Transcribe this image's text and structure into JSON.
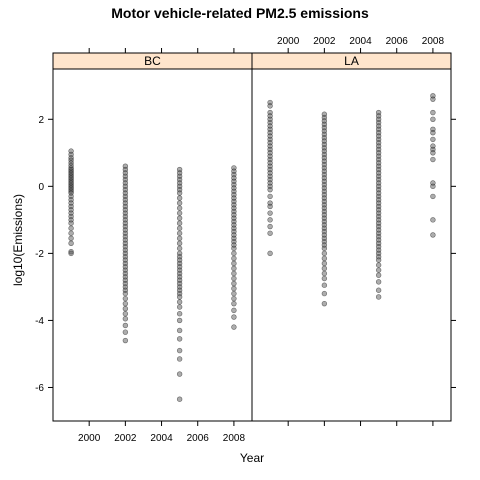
{
  "chart_data": {
    "type": "scatter",
    "title": "Motor vehicle-related PM2.5 emissions",
    "xlabel": "Year",
    "ylabel": "log10(Emissions)",
    "xlim": [
      1998,
      2009
    ],
    "ylim": [
      -7,
      3.5
    ],
    "x_ticks": [
      2000,
      2002,
      2004,
      2006,
      2008
    ],
    "y_ticks": [
      -6,
      -4,
      -2,
      0,
      2
    ],
    "point_color": "#4a4a4a",
    "strip_color": "#ffe5cc",
    "panels": [
      {
        "name": "BC",
        "series": [
          {
            "x": 1999,
            "values": [
              1.05,
              0.95,
              0.85,
              0.78,
              0.7,
              0.62,
              0.55,
              0.5,
              0.45,
              0.4,
              0.35,
              0.3,
              0.25,
              0.2,
              0.15,
              0.1,
              0.05,
              0.0,
              -0.05,
              -0.1,
              -0.15,
              -0.2,
              -0.3,
              -0.4,
              -0.5,
              -0.6,
              -0.7,
              -0.8,
              -0.9,
              -1.0,
              -1.1,
              -1.25,
              -1.4,
              -1.55,
              -1.7,
              -1.95,
              -2.0
            ]
          },
          {
            "x": 2002,
            "values": [
              0.6,
              0.5,
              0.4,
              0.3,
              0.2,
              0.1,
              0.0,
              -0.1,
              -0.2,
              -0.3,
              -0.4,
              -0.5,
              -0.6,
              -0.7,
              -0.8,
              -0.9,
              -1.0,
              -1.1,
              -1.2,
              -1.3,
              -1.4,
              -1.5,
              -1.6,
              -1.7,
              -1.8,
              -1.9,
              -2.0,
              -2.1,
              -2.2,
              -2.3,
              -2.4,
              -2.5,
              -2.6,
              -2.7,
              -2.8,
              -2.9,
              -3.0,
              -3.1,
              -3.2,
              -3.35,
              -3.5,
              -3.65,
              -3.8,
              -3.95,
              -4.15,
              -4.35,
              -4.6
            ]
          },
          {
            "x": 2005,
            "values": [
              0.5,
              0.4,
              0.3,
              0.2,
              0.1,
              0.0,
              -0.1,
              -0.2,
              -0.35,
              -0.5,
              -0.65,
              -0.8,
              -0.95,
              -1.1,
              -1.25,
              -1.4,
              -1.55,
              -1.7,
              -1.85,
              -2.0,
              -2.1,
              -2.2,
              -2.3,
              -2.4,
              -2.5,
              -2.6,
              -2.7,
              -2.8,
              -2.9,
              -3.0,
              -3.1,
              -3.2,
              -3.3,
              -3.45,
              -3.6,
              -3.8,
              -4.0,
              -4.3,
              -4.55,
              -4.9,
              -5.15,
              -5.6,
              -6.35
            ]
          },
          {
            "x": 2008,
            "values": [
              0.55,
              0.45,
              0.35,
              0.25,
              0.15,
              0.05,
              -0.05,
              -0.15,
              -0.25,
              -0.35,
              -0.45,
              -0.55,
              -0.65,
              -0.75,
              -0.85,
              -0.95,
              -1.05,
              -1.15,
              -1.25,
              -1.35,
              -1.45,
              -1.55,
              -1.65,
              -1.75,
              -1.85,
              -2.0,
              -2.15,
              -2.3,
              -2.45,
              -2.6,
              -2.75,
              -2.9,
              -3.05,
              -3.2,
              -3.35,
              -3.5,
              -3.7,
              -3.9,
              -4.2
            ]
          }
        ]
      },
      {
        "name": "LA",
        "series": [
          {
            "x": 1999,
            "values": [
              2.5,
              2.4,
              2.2,
              2.1,
              2.0,
              1.9,
              1.8,
              1.7,
              1.6,
              1.5,
              1.4,
              1.3,
              1.2,
              1.1,
              1.0,
              0.9,
              0.8,
              0.7,
              0.6,
              0.5,
              0.4,
              0.3,
              0.2,
              0.1,
              0.0,
              -0.1,
              -0.3,
              -0.5,
              -0.6,
              -0.8,
              -1.0,
              -1.2,
              -1.4,
              -2.0
            ]
          },
          {
            "x": 2002,
            "values": [
              2.15,
              2.05,
              1.95,
              1.85,
              1.75,
              1.65,
              1.55,
              1.45,
              1.35,
              1.25,
              1.15,
              1.05,
              0.95,
              0.85,
              0.75,
              0.65,
              0.55,
              0.45,
              0.35,
              0.25,
              0.15,
              0.05,
              -0.05,
              -0.15,
              -0.25,
              -0.35,
              -0.45,
              -0.55,
              -0.65,
              -0.75,
              -0.85,
              -0.95,
              -1.05,
              -1.15,
              -1.25,
              -1.35,
              -1.45,
              -1.55,
              -1.65,
              -1.75,
              -1.85,
              -2.0,
              -2.15,
              -2.3,
              -2.45,
              -2.6,
              -2.75,
              -2.95,
              -3.2,
              -3.5
            ]
          },
          {
            "x": 2005,
            "values": [
              2.2,
              2.1,
              2.0,
              1.9,
              1.8,
              1.7,
              1.6,
              1.5,
              1.4,
              1.3,
              1.2,
              1.1,
              1.0,
              0.9,
              0.8,
              0.7,
              0.6,
              0.5,
              0.4,
              0.3,
              0.2,
              0.1,
              0.0,
              -0.1,
              -0.2,
              -0.3,
              -0.4,
              -0.5,
              -0.6,
              -0.7,
              -0.8,
              -0.9,
              -1.0,
              -1.1,
              -1.2,
              -1.3,
              -1.4,
              -1.5,
              -1.6,
              -1.7,
              -1.8,
              -1.9,
              -2.0,
              -2.1,
              -2.2,
              -2.35,
              -2.5,
              -2.65,
              -2.85,
              -3.1,
              -3.3
            ]
          },
          {
            "x": 2008,
            "values": [
              2.7,
              2.6,
              2.2,
              2.0,
              1.7,
              1.6,
              1.4,
              1.2,
              1.1,
              1.0,
              0.8,
              0.1,
              0.0,
              -0.3,
              -1.0,
              -1.45
            ]
          }
        ]
      }
    ]
  }
}
